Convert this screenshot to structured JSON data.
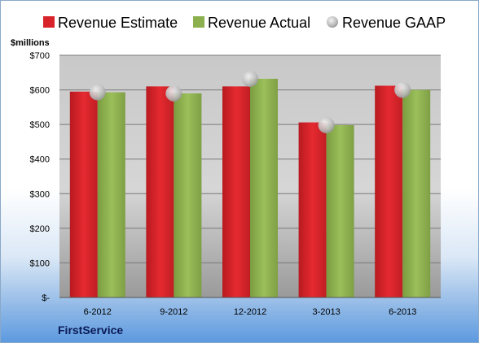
{
  "company": "FirstService",
  "chart_data": {
    "type": "bar",
    "unit_label": "$millions",
    "categories": [
      "6-2012",
      "9-2012",
      "12-2012",
      "3-2013",
      "6-2013"
    ],
    "series": [
      {
        "name": "Revenue Estimate",
        "kind": "bar",
        "color": "#d8232a",
        "values": [
          595,
          610,
          610,
          506,
          612
        ]
      },
      {
        "name": "Revenue Actual",
        "kind": "bar",
        "color": "#8db04f",
        "values": [
          593,
          590,
          632,
          498,
          600
        ]
      },
      {
        "name": "Revenue GAAP",
        "kind": "marker",
        "color": "#c9c9c9",
        "values": [
          593,
          590,
          632,
          498,
          600
        ]
      }
    ],
    "yticks": [
      {
        "value": 0,
        "label": "$-"
      },
      {
        "value": 100,
        "label": "$100"
      },
      {
        "value": 200,
        "label": "$200"
      },
      {
        "value": 300,
        "label": "$300"
      },
      {
        "value": 400,
        "label": "$400"
      },
      {
        "value": 500,
        "label": "$500"
      },
      {
        "value": 600,
        "label": "$600"
      },
      {
        "value": 700,
        "label": "$700"
      }
    ],
    "ylim": [
      0,
      700
    ],
    "grid": true,
    "legend_position": "top"
  }
}
